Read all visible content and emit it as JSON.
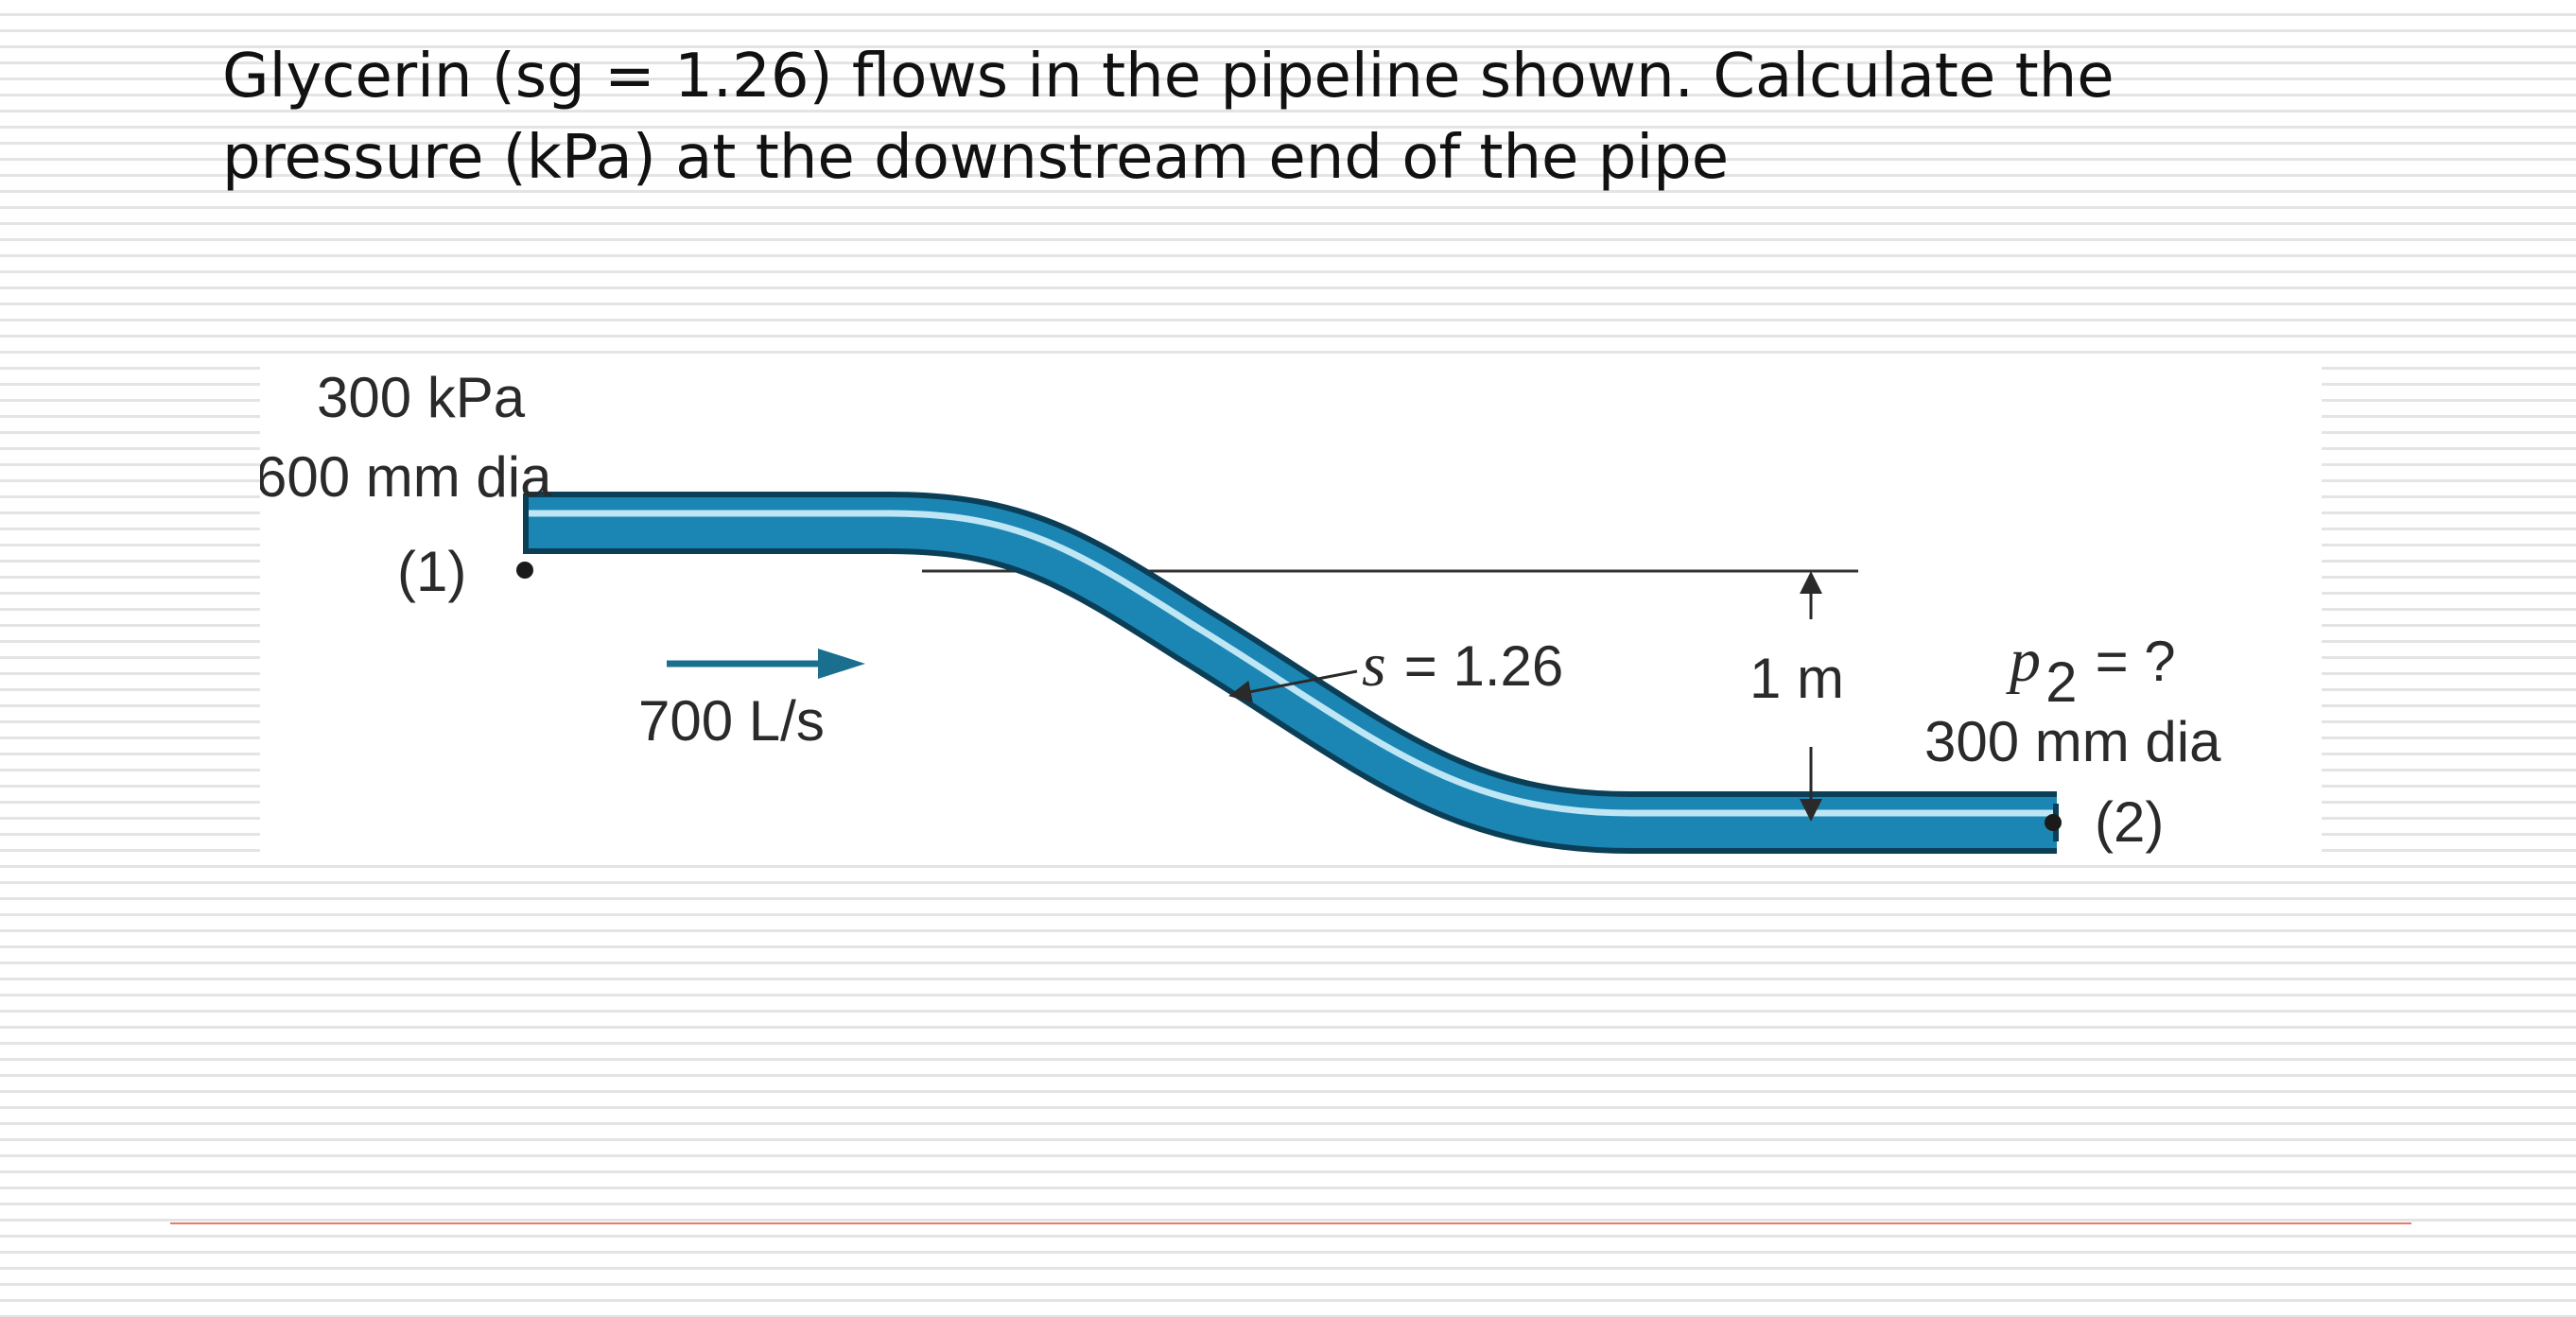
{
  "problem": {
    "line1": "Glycerin (sg = 1.26) flows in the pipeline shown. Calculate the",
    "line2": "pressure (kPa) at the downstream end of the pipe"
  },
  "diagram": {
    "inlet_pressure": "300 kPa",
    "inlet_diameter": "600 mm dia",
    "point1_label": "(1)",
    "flow_rate": "700 L/s",
    "sg_symbol": "s",
    "sg_equals": "= 1.26",
    "elevation_diff": "1 m",
    "p2_symbol": "p",
    "p2_subscript": "2",
    "p2_equals": "= ?",
    "outlet_diameter": "300 mm dia",
    "point2_label": "(2)"
  },
  "colors": {
    "pipe_fill": "#1b86b4",
    "pipe_edge": "#0b3f58",
    "pipe_highlight": "#bfe6f5",
    "arrow": "#1a6f8f"
  }
}
